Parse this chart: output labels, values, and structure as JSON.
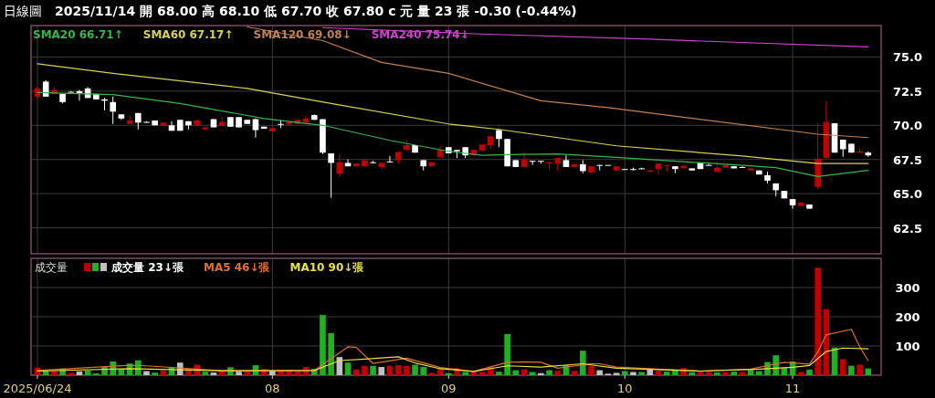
{
  "chart_data": [
    {
      "type": "candlestick",
      "title": "日線圖",
      "subtitle": "2025/11/14 開 68.00 高 68.10 低 67.70 收 67.80 c 元 量 23 張 -0.30 (-0.44%)",
      "categories": [
        "2025/06/24",
        null,
        null,
        null,
        null,
        null,
        null,
        null,
        null,
        null,
        null,
        null,
        null,
        null,
        null,
        null,
        null,
        null,
        null,
        null,
        null,
        null,
        null,
        null,
        null,
        null,
        null,
        null,
        "08",
        null,
        null,
        null,
        null,
        null,
        null,
        null,
        null,
        null,
        null,
        null,
        null,
        null,
        null,
        null,
        null,
        null,
        null,
        null,
        null,
        "09",
        null,
        null,
        null,
        null,
        null,
        null,
        null,
        null,
        null,
        null,
        null,
        null,
        null,
        null,
        null,
        null,
        null,
        null,
        null,
        null,
        "10",
        null,
        null,
        null,
        null,
        null,
        null,
        null,
        null,
        null,
        null,
        null,
        null,
        null,
        null,
        null,
        null,
        null,
        null,
        null,
        "11",
        null,
        null,
        null,
        null,
        null,
        null,
        null,
        null,
        null
      ],
      "ohlc": [
        [
          72.1,
          72.8,
          72.0,
          72.7
        ],
        [
          73.2,
          73.3,
          72.1,
          72.1
        ],
        [
          72.3,
          72.8,
          72.3,
          72.6
        ],
        [
          72.3,
          72.3,
          71.6,
          71.7
        ],
        [
          72.45,
          72.5,
          72.4,
          72.4
        ],
        [
          72.5,
          72.6,
          71.8,
          72.35
        ],
        [
          72.7,
          72.8,
          72.0,
          72.0
        ],
        [
          72.3,
          72.3,
          71.9,
          71.9
        ],
        [
          71.9,
          72.0,
          71.1,
          71.8
        ],
        [
          71.7,
          72.1,
          70.1,
          71.0
        ],
        [
          70.8,
          70.8,
          70.4,
          70.5
        ],
        [
          70.1,
          70.7,
          70.1,
          70.35
        ],
        [
          70.9,
          70.9,
          69.7,
          70.2
        ],
        [
          70.25,
          70.3,
          70.2,
          70.2
        ],
        [
          70.35,
          70.35,
          70.0,
          70.0
        ],
        [
          70.0,
          70.2,
          70.0,
          70.2
        ],
        [
          70.0,
          70.3,
          69.6,
          69.6
        ],
        [
          70.4,
          70.4,
          69.6,
          69.6
        ],
        [
          70.3,
          70.3,
          69.7,
          70.0
        ],
        [
          70.0,
          70.4,
          69.9,
          70.35
        ],
        [
          69.7,
          69.9,
          69.7,
          69.85
        ],
        [
          70.45,
          70.45,
          69.85,
          69.85
        ],
        [
          69.95,
          70.6,
          69.95,
          70.25
        ],
        [
          70.6,
          70.6,
          69.9,
          69.9
        ],
        [
          70.6,
          70.6,
          69.85,
          69.85
        ],
        [
          70.4,
          70.4,
          70.1,
          70.1
        ],
        [
          70.45,
          70.5,
          69.1,
          69.65
        ],
        [
          69.9,
          69.9,
          69.75,
          69.75
        ],
        [
          69.55,
          69.8,
          69.55,
          69.8
        ],
        [
          70.1,
          70.4,
          69.8,
          70.1
        ],
        [
          70.05,
          70.25,
          70.05,
          70.25
        ],
        [
          70.1,
          70.4,
          70.1,
          70.4
        ],
        [
          70.2,
          70.7,
          70.2,
          70.5
        ],
        [
          70.75,
          70.8,
          70.4,
          70.4
        ],
        [
          70.45,
          70.45,
          67.9,
          68.0
        ],
        [
          67.95,
          67.95,
          64.7,
          67.25
        ],
        [
          66.45,
          67.9,
          66.2,
          67.3
        ],
        [
          67.25,
          67.5,
          67.0,
          67.0
        ],
        [
          67.0,
          67.2,
          67.0,
          67.2
        ],
        [
          67.0,
          67.45,
          67.0,
          67.45
        ],
        [
          67.3,
          67.4,
          67.2,
          67.3
        ],
        [
          66.95,
          67.25,
          66.8,
          67.25
        ],
        [
          67.35,
          67.75,
          67.3,
          67.3
        ],
        [
          67.45,
          68.1,
          67.2,
          68.05
        ],
        [
          68.2,
          68.95,
          68.2,
          68.55
        ],
        [
          68.55,
          68.55,
          68.0,
          68.0
        ],
        [
          67.45,
          67.45,
          66.7,
          67.0
        ],
        [
          67.0,
          67.3,
          67.0,
          67.3
        ],
        [
          67.65,
          68.5,
          67.65,
          68.2
        ],
        [
          68.4,
          68.4,
          67.95,
          67.95
        ],
        [
          68.2,
          68.2,
          67.6,
          68.1
        ],
        [
          68.4,
          68.4,
          67.6,
          67.8
        ],
        [
          67.8,
          68.2,
          67.8,
          68.2
        ],
        [
          68.15,
          68.6,
          68.15,
          68.6
        ],
        [
          68.55,
          69.2,
          68.3,
          69.2
        ],
        [
          69.65,
          69.7,
          68.4,
          69.0
        ],
        [
          69.0,
          69.0,
          67.0,
          67.0
        ],
        [
          67.45,
          67.45,
          66.95,
          66.95
        ],
        [
          66.95,
          68.0,
          66.95,
          67.5
        ],
        [
          67.4,
          67.4,
          67.1,
          67.4
        ],
        [
          67.4,
          67.4,
          67.2,
          67.4
        ],
        [
          67.2,
          67.3,
          66.7,
          67.3
        ],
        [
          67.2,
          67.6,
          66.7,
          67.6
        ],
        [
          67.45,
          67.8,
          66.95,
          66.95
        ],
        [
          66.95,
          67.15,
          66.95,
          67.15
        ],
        [
          67.15,
          67.45,
          66.5,
          66.65
        ],
        [
          66.55,
          67.0,
          66.55,
          67.0
        ],
        [
          67.1,
          67.1,
          66.7,
          67.1
        ],
        [
          67.1,
          67.1,
          67.1,
          67.1
        ],
        [
          66.7,
          67.0,
          66.7,
          67.0
        ],
        [
          66.8,
          66.8,
          66.8,
          66.8
        ],
        [
          66.8,
          66.9,
          66.7,
          66.8
        ],
        [
          66.85,
          66.9,
          66.8,
          66.8
        ],
        [
          66.6,
          66.7,
          66.6,
          66.7
        ],
        [
          66.8,
          67.2,
          66.4,
          67.2
        ],
        [
          67.05,
          67.1,
          66.6,
          67.1
        ],
        [
          67.0,
          67.0,
          66.5,
          66.8
        ],
        [
          66.85,
          67.05,
          66.85,
          67.05
        ],
        [
          66.85,
          66.85,
          66.7,
          66.7
        ],
        [
          67.25,
          67.25,
          66.8,
          66.8
        ],
        [
          67.1,
          67.2,
          67.1,
          67.1
        ],
        [
          66.6,
          67.3,
          66.6,
          66.9
        ],
        [
          66.9,
          67.1,
          66.9,
          67.1
        ],
        [
          67.0,
          67.0,
          66.85,
          66.85
        ],
        [
          66.95,
          67.0,
          66.9,
          66.9
        ],
        [
          66.7,
          66.85,
          66.7,
          66.85
        ],
        [
          66.7,
          66.7,
          66.4,
          66.4
        ],
        [
          66.35,
          66.6,
          65.75,
          65.95
        ],
        [
          65.75,
          65.75,
          64.8,
          65.25
        ],
        [
          65.2,
          65.2,
          64.65,
          64.65
        ],
        [
          64.6,
          64.6,
          63.9,
          64.15
        ],
        [
          64.1,
          64.35,
          64.1,
          64.35
        ],
        [
          64.2,
          64.2,
          63.9,
          63.9
        ],
        [
          65.5,
          70.2,
          65.3,
          67.55
        ],
        [
          67.6,
          71.8,
          67.6,
          70.25
        ],
        [
          70.15,
          70.15,
          68.0,
          68.0
        ],
        [
          68.95,
          68.95,
          67.7,
          68.25
        ],
        [
          68.65,
          68.65,
          68.0,
          68.0
        ],
        [
          68.0,
          68.3,
          68.0,
          68.1
        ],
        [
          68.0,
          68.1,
          67.7,
          67.8
        ]
      ],
      "colors": [
        "#c00000",
        "#ffffff",
        "#c00000",
        "#ffffff",
        "#ffffff",
        "#ffffff",
        "#ffffff",
        "#ffffff",
        "#ffffff",
        "#ffffff",
        "#ffffff",
        "#c00000",
        "#ffffff",
        "#ffffff",
        "#ffffff",
        "#c00000",
        "#ffffff",
        "#ffffff",
        "#ffffff",
        "#c00000",
        "#c00000",
        "#ffffff",
        "#c00000",
        "#ffffff",
        "#ffffff",
        "#ffffff",
        "#ffffff",
        "#ffffff",
        "#c00000",
        "#ffffff",
        "#c00000",
        "#c00000",
        "#c00000",
        "#ffffff",
        "#ffffff",
        "#ffffff",
        "#c00000",
        "#ffffff",
        "#c00000",
        "#c00000",
        "#ffffff",
        "#c00000",
        "#ffffff",
        "#c00000",
        "#c00000",
        "#ffffff",
        "#ffffff",
        "#c00000",
        "#c00000",
        "#ffffff",
        "#ffffff",
        "#ffffff",
        "#c00000",
        "#c00000",
        "#c00000",
        "#ffffff",
        "#ffffff",
        "#ffffff",
        "#c00000",
        "#ffffff",
        "#ffffff",
        "#c00000",
        "#c00000",
        "#ffffff",
        "#c00000",
        "#ffffff",
        "#c00000",
        "#ffffff",
        "#ffffff",
        "#c00000",
        "#ffffff",
        "#ffffff",
        "#ffffff",
        "#c00000",
        "#c00000",
        "#c00000",
        "#ffffff",
        "#c00000",
        "#ffffff",
        "#ffffff",
        "#ffffff",
        "#c00000",
        "#c00000",
        "#ffffff",
        "#ffffff",
        "#c00000",
        "#ffffff",
        "#ffffff",
        "#ffffff",
        "#ffffff",
        "#ffffff",
        "#c00000",
        "#ffffff",
        "#c00000",
        "#c00000",
        "#ffffff",
        "#ffffff",
        "#ffffff",
        "#c00000",
        "#ffffff"
      ],
      "series": [
        {
          "name": "SMA20 66.71↑",
          "type": "line",
          "color": "#33b84a",
          "values": [
            72.4,
            null,
            null,
            null,
            null,
            null,
            null,
            null,
            null,
            72.25,
            null,
            null,
            null,
            null,
            null,
            null,
            null,
            71.6,
            null,
            null,
            null,
            null,
            null,
            null,
            null,
            null,
            null,
            70.5,
            null,
            null,
            null,
            null,
            null,
            null,
            70.0,
            null,
            null,
            null,
            null,
            null,
            null,
            null,
            68.9,
            null,
            null,
            null,
            null,
            null,
            null,
            68.1,
            null,
            null,
            null,
            67.8,
            null,
            null,
            67.85,
            null,
            null,
            null,
            null,
            null,
            67.9,
            null,
            null,
            null,
            null,
            null,
            null,
            67.65,
            null,
            null,
            null,
            null,
            null,
            null,
            null,
            null,
            null,
            null,
            null,
            null,
            67.15,
            null,
            null,
            null,
            null,
            null,
            66.9,
            null,
            null,
            null,
            null,
            66.25,
            null,
            null,
            null,
            null,
            null,
            66.7
          ]
        },
        {
          "name": "SMA60 67.17↑",
          "type": "line",
          "color": "#d8d050",
          "values": [
            74.5,
            null,
            null,
            null,
            null,
            null,
            null,
            null,
            null,
            73.8,
            null,
            null,
            null,
            null,
            null,
            null,
            null,
            null,
            null,
            null,
            null,
            null,
            null,
            null,
            null,
            72.7,
            null,
            null,
            null,
            null,
            null,
            null,
            null,
            null,
            null,
            71.6,
            null,
            null,
            null,
            null,
            null,
            null,
            null,
            null,
            null,
            null,
            null,
            null,
            null,
            70.1,
            null,
            null,
            null,
            null,
            null,
            69.7,
            null,
            null,
            null,
            null,
            null,
            null,
            null,
            null,
            null,
            null,
            null,
            null,
            null,
            68.5,
            null,
            null,
            null,
            null,
            null,
            null,
            null,
            null,
            null,
            null,
            null,
            null,
            null,
            null,
            67.75,
            null,
            null,
            null,
            null,
            null,
            null,
            null,
            null,
            67.2,
            null,
            null,
            null,
            null,
            null,
            67.2
          ]
        },
        {
          "name": "SMA120 69.08↓",
          "type": "line",
          "color": "#c08050",
          "values": [
            null,
            null,
            null,
            null,
            null,
            null,
            null,
            null,
            null,
            null,
            null,
            null,
            null,
            null,
            null,
            null,
            null,
            null,
            null,
            null,
            null,
            null,
            null,
            null,
            null,
            77.2,
            null,
            null,
            null,
            null,
            null,
            null,
            null,
            null,
            76.2,
            null,
            null,
            null,
            null,
            null,
            null,
            74.6,
            null,
            null,
            null,
            null,
            null,
            null,
            null,
            73.8,
            null,
            null,
            null,
            null,
            null,
            null,
            null,
            null,
            null,
            null,
            71.8,
            null,
            null,
            null,
            null,
            null,
            null,
            null,
            71.3,
            null,
            null,
            null,
            null,
            null,
            null,
            null,
            null,
            null,
            null,
            null,
            null,
            null,
            null,
            null,
            null,
            null,
            null,
            null,
            null,
            null,
            null,
            null,
            null,
            69.35,
            null,
            null,
            null,
            null,
            null,
            69.1
          ]
        },
        {
          "name": "SMA240 75.74↓",
          "type": "line",
          "color": "#d040d0",
          "values": [
            null,
            null,
            null,
            null,
            null,
            null,
            null,
            null,
            null,
            null,
            null,
            null,
            null,
            null,
            null,
            null,
            null,
            null,
            null,
            null,
            null,
            null,
            null,
            null,
            null,
            null,
            null,
            null,
            null,
            null,
            null,
            null,
            null,
            null,
            77.15,
            null,
            null,
            null,
            null,
            null,
            null,
            null,
            null,
            null,
            null,
            null,
            null,
            null,
            null,
            null,
            null,
            null,
            76.7,
            null,
            null,
            null,
            null,
            null,
            null,
            null,
            null,
            null,
            null,
            null,
            null,
            null,
            null,
            null,
            null,
            null,
            null,
            null,
            null,
            76.3,
            null,
            null,
            null,
            null,
            null,
            null,
            null,
            null,
            null,
            null,
            null,
            null,
            null,
            null,
            null,
            null,
            null,
            null,
            null,
            null,
            null,
            null,
            null,
            null,
            null,
            75.74
          ]
        }
      ],
      "ylim": [
        60.6,
        77.3
      ],
      "yticks": [
        {
          "value": 62.5,
          "label": "62.5"
        },
        {
          "value": 65,
          "label": "65.0"
        },
        {
          "value": 67.5,
          "label": "67.5"
        },
        {
          "value": 70,
          "label": "70.0"
        },
        {
          "value": 72.5,
          "label": "72.5"
        },
        {
          "value": 75,
          "label": "75.0"
        }
      ],
      "grid": true,
      "legend": "top left",
      "tick_labels": "y"
    },
    {
      "type": "bar",
      "title": "成交量",
      "categories": [
        "2025/06/24",
        null,
        null,
        null,
        null,
        null,
        null,
        null,
        null,
        null,
        null,
        null,
        null,
        null,
        null,
        null,
        null,
        null,
        null,
        null,
        null,
        null,
        null,
        null,
        null,
        null,
        null,
        null,
        "08",
        null,
        null,
        null,
        null,
        null,
        null,
        null,
        null,
        null,
        null,
        null,
        null,
        null,
        null,
        null,
        null,
        null,
        null,
        null,
        null,
        "09",
        null,
        null,
        null,
        null,
        null,
        null,
        null,
        null,
        null,
        null,
        null,
        null,
        null,
        null,
        null,
        null,
        null,
        null,
        null,
        null,
        "10",
        null,
        null,
        null,
        null,
        null,
        null,
        null,
        null,
        null,
        null,
        null,
        null,
        null,
        null,
        null,
        null,
        null,
        null,
        null,
        "11",
        null,
        null,
        null,
        null,
        null,
        null,
        null,
        null,
        null
      ],
      "series": [
        {
          "name": "成交量 23↓張",
          "type": "bar",
          "values": [
            26,
            16,
            16,
            23,
            8,
            13,
            16,
            6,
            28,
            47,
            22,
            40,
            51,
            14,
            9,
            16,
            26,
            43,
            22,
            36,
            12,
            9,
            16,
            27,
            12,
            16,
            34,
            22,
            16,
            18,
            18,
            13,
            28,
            22,
            206,
            144,
            62,
            43,
            20,
            32,
            32,
            28,
            32,
            34,
            32,
            36,
            28,
            8,
            24,
            7,
            24,
            11,
            13,
            11,
            29,
            12,
            141,
            17,
            20,
            11,
            7,
            17,
            15,
            34,
            15,
            84,
            32,
            17,
            5,
            8,
            14,
            11,
            11,
            20,
            15,
            12,
            19,
            25,
            10,
            12,
            11,
            9,
            11,
            12,
            11,
            19,
            14,
            45,
            68,
            26,
            47,
            11,
            19,
            368,
            226,
            95,
            55,
            32,
            36,
            23
          ],
          "colors": [
            "#c00000",
            "#20b020",
            "#c00000",
            "#20b020",
            "#c00000",
            "#c0c0c0",
            "#20b020",
            "#20b020",
            "#20b020",
            "#20b020",
            "#20b020",
            "#20b020",
            "#20b020",
            "#c0c0c0",
            "#20b020",
            "#c00000",
            "#20b020",
            "#c0c0c0",
            "#c00000",
            "#c00000",
            "#20b020",
            "#c0c0c0",
            "#c00000",
            "#20b020",
            "#c0c0c0",
            "#c00000",
            "#20b020",
            "#c00000",
            "#c0c0c0",
            "#c00000",
            "#c00000",
            "#c00000",
            "#c00000",
            "#20b020",
            "#20b020",
            "#20b020",
            "#c0c0c0",
            "#20b020",
            "#c00000",
            "#c00000",
            "#20b020",
            "#c0c0c0",
            "#c00000",
            "#c00000",
            "#c00000",
            "#20b020",
            "#20b020",
            "#c00000",
            "#c00000",
            "#20b020",
            "#c00000",
            "#20b020",
            "#c00000",
            "#c00000",
            "#c00000",
            "#20b020",
            "#20b020",
            "#20b020",
            "#c00000",
            "#20b020",
            "#c0c0c0",
            "#20b020",
            "#c00000",
            "#20b020",
            "#c00000",
            "#20b020",
            "#c00000",
            "#c0c0c0",
            "#c0c0c0",
            "#c0c0c0",
            "#20b020",
            "#c0c0c0",
            "#20b020",
            "#c0c0c0",
            "#c00000",
            "#20b020",
            "#20b020",
            "#c00000",
            "#20b020",
            "#c00000",
            "#c00000",
            "#20b020",
            "#c00000",
            "#20b020",
            "#c00000",
            "#20b020",
            "#20b020",
            "#20b020",
            "#20b020",
            "#20b020",
            "#20b020",
            "#c00000",
            "#20b020",
            "#c00000",
            "#c00000",
            "#20b020",
            "#c00000",
            "#20b020",
            "#c00000",
            "#20b020"
          ]
        },
        {
          "name": "MA5 46↓張",
          "type": "line",
          "color": "#e07030",
          "values": [
            16,
            null,
            null,
            null,
            null,
            null,
            null,
            null,
            null,
            null,
            null,
            34,
            null,
            32,
            null,
            null,
            null,
            null,
            null,
            null,
            null,
            null,
            15,
            null,
            null,
            null,
            null,
            null,
            null,
            null,
            null,
            null,
            null,
            16,
            null,
            null,
            null,
            97,
            95,
            null,
            40,
            null,
            null,
            null,
            58,
            null,
            null,
            null,
            26,
            null,
            null,
            null,
            13,
            null,
            null,
            null,
            44,
            null,
            46,
            null,
            44,
            null,
            24,
            null,
            null,
            null,
            39,
            39,
            null,
            28,
            null,
            null,
            null,
            null,
            21,
            null,
            null,
            null,
            null,
            14,
            null,
            null,
            null,
            null,
            null,
            21,
            null,
            null,
            null,
            44,
            null,
            null,
            38,
            80,
            138,
            null,
            null,
            157,
            97,
            50
          ]
        },
        {
          "name": "MA10 90↓張",
          "type": "line",
          "color": "#e8e040",
          "values": [
            14,
            null,
            null,
            null,
            null,
            null,
            null,
            null,
            null,
            null,
            null,
            22,
            null,
            null,
            null,
            null,
            null,
            null,
            null,
            null,
            null,
            null,
            15,
            null,
            null,
            null,
            null,
            null,
            null,
            null,
            null,
            null,
            null,
            16,
            null,
            null,
            50,
            null,
            null,
            55,
            null,
            null,
            null,
            63,
            null,
            42,
            null,
            null,
            22,
            null,
            null,
            null,
            13,
            null,
            null,
            null,
            32,
            null,
            null,
            null,
            28,
            null,
            null,
            null,
            null,
            39,
            null,
            null,
            null,
            24,
            null,
            null,
            null,
            null,
            null,
            null,
            null,
            null,
            null,
            14,
            null,
            null,
            null,
            null,
            null,
            null,
            21,
            null,
            null,
            null,
            27,
            null,
            33,
            null,
            81,
            null,
            93,
            null,
            null,
            90
          ]
        }
      ],
      "ylim": [
        0,
        400
      ],
      "yticks": [
        100,
        200,
        300
      ],
      "grid": true,
      "legend": "top left"
    }
  ]
}
